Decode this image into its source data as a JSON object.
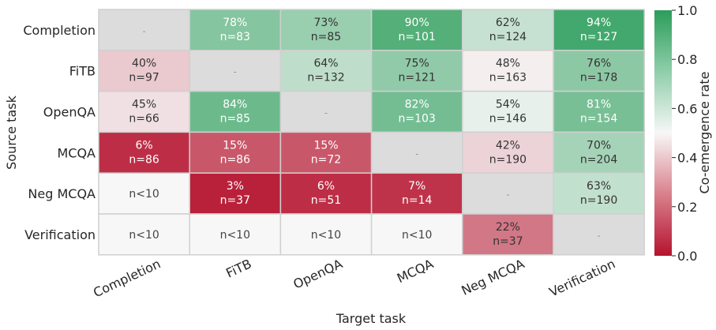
{
  "chart_data": {
    "type": "heatmap",
    "xlabel": "Target task",
    "ylabel": "Source task",
    "x_categories": [
      "Completion",
      "FiTB",
      "OpenQA",
      "MCQA",
      "Neg MCQA",
      "Verification"
    ],
    "y_categories": [
      "Completion",
      "FiTB",
      "OpenQA",
      "MCQA",
      "Neg MCQA",
      "Verification"
    ],
    "values": [
      [
        null,
        0.78,
        0.73,
        0.9,
        0.62,
        0.94
      ],
      [
        0.4,
        null,
        0.64,
        0.75,
        0.48,
        0.76
      ],
      [
        0.45,
        0.84,
        null,
        0.82,
        0.54,
        0.81
      ],
      [
        0.06,
        0.15,
        0.15,
        null,
        0.42,
        0.7
      ],
      [
        null,
        0.03,
        0.06,
        0.07,
        null,
        0.63
      ],
      [
        null,
        null,
        null,
        null,
        0.22,
        null
      ]
    ],
    "cell_labels": [
      [
        [
          "-"
        ],
        [
          "78%",
          "n=83"
        ],
        [
          "73%",
          "n=85"
        ],
        [
          "90%",
          "n=101"
        ],
        [
          "62%",
          "n=124"
        ],
        [
          "94%",
          "n=127"
        ]
      ],
      [
        [
          "40%",
          "n=97"
        ],
        [
          "-"
        ],
        [
          "64%",
          "n=132"
        ],
        [
          "75%",
          "n=121"
        ],
        [
          "48%",
          "n=163"
        ],
        [
          "76%",
          "n=178"
        ]
      ],
      [
        [
          "45%",
          "n=66"
        ],
        [
          "84%",
          "n=85"
        ],
        [
          "-"
        ],
        [
          "82%",
          "n=103"
        ],
        [
          "54%",
          "n=146"
        ],
        [
          "81%",
          "n=154"
        ]
      ],
      [
        [
          "6%",
          "n=86"
        ],
        [
          "15%",
          "n=86"
        ],
        [
          "15%",
          "n=72"
        ],
        [
          "-"
        ],
        [
          "42%",
          "n=190"
        ],
        [
          "70%",
          "n=204"
        ]
      ],
      [
        [
          "n<10"
        ],
        [
          "3%",
          "n=37"
        ],
        [
          "6%",
          "n=51"
        ],
        [
          "7%",
          "n=14"
        ],
        [
          "-"
        ],
        [
          "63%",
          "n=190"
        ]
      ],
      [
        [
          "n<10"
        ],
        [
          "n<10"
        ],
        [
          "n<10"
        ],
        [
          "n<10"
        ],
        [
          "22%",
          "n=37"
        ],
        [
          "-"
        ]
      ]
    ],
    "colorbar": {
      "label": "Co-emergence rate",
      "range": [
        0.0,
        1.0
      ],
      "ticks": [
        "0.0",
        "0.2",
        "0.4",
        "0.6",
        "0.8",
        "1.0"
      ]
    },
    "colors": {
      "low": "#b5132e",
      "mid": "#f7f7f7",
      "high": "#2b9d5a",
      "diagonal": "#dcdcdc",
      "insufficient": "#f7f7f7"
    }
  }
}
